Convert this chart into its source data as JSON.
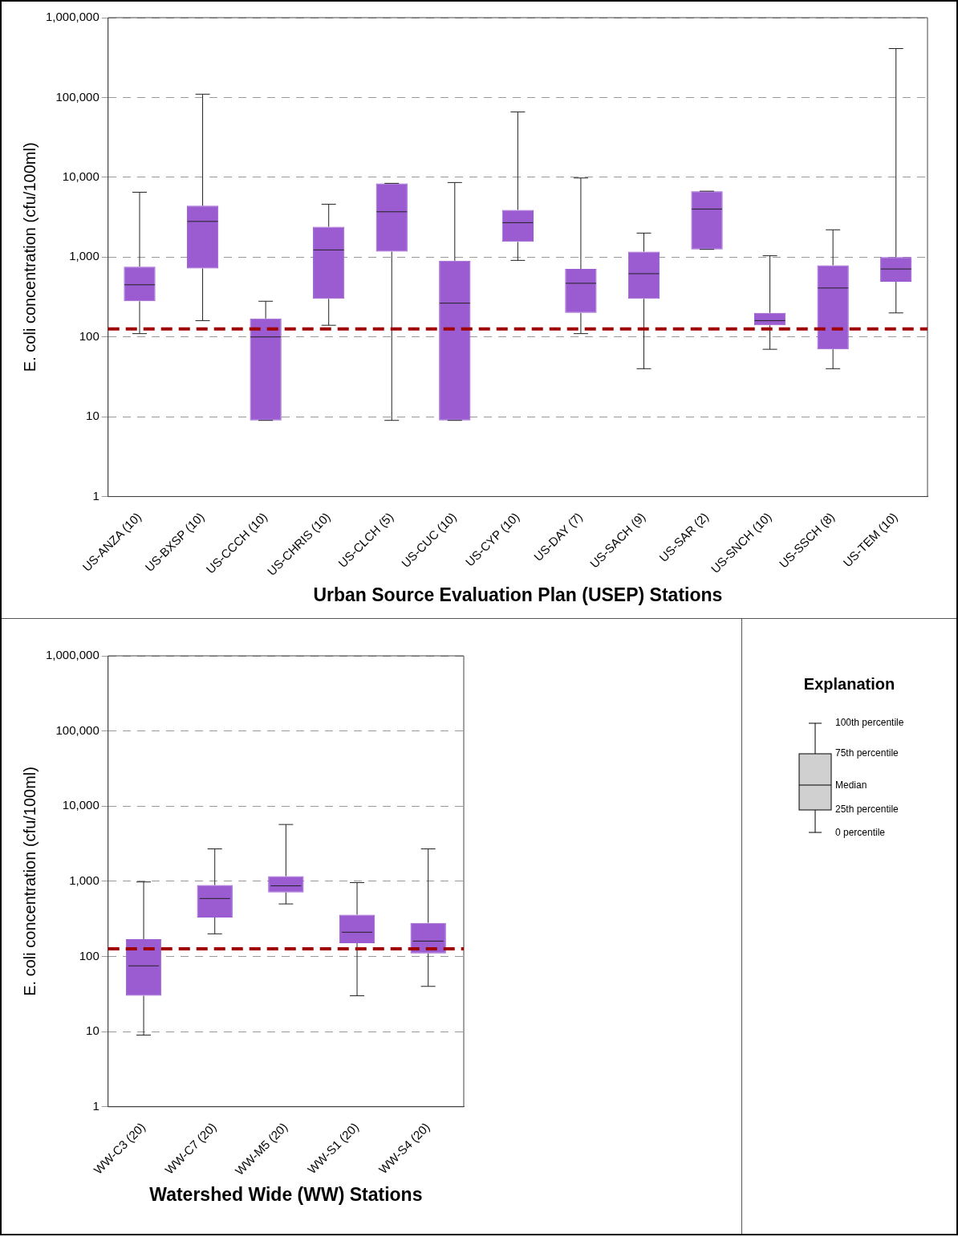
{
  "chart_data": [
    {
      "type": "box",
      "xlabel": "Urban Source Evaluation Plan (USEP) Stations",
      "ylabel": "E. coli concentration (cfu/100ml)",
      "categories": [
        "US-ANZA (10)",
        "US-BXSP (10)",
        "US-CCCH (10)",
        "US-CHRIS (10)",
        "US-CLCH (5)",
        "US-CUC (10)",
        "US-CYP (10)",
        "US-DAY (7)",
        "US-SACH (9)",
        "US-SAR (2)",
        "US-SNCH (10)",
        "US-SSCH (8)",
        "US-TEM (10)"
      ],
      "color": "#9a5cd0",
      "log": true,
      "grid": "y",
      "ylim": [
        1,
        1000000
      ],
      "yticks": [
        1,
        10,
        100,
        {
          "value": 1000,
          "label": "1,000"
        },
        {
          "value": 10000,
          "label": "10,000"
        },
        {
          "value": 100000,
          "label": "100,000"
        },
        {
          "value": 1000000,
          "label": "1,000,000"
        }
      ],
      "ref_lines": [
        {
          "axis": "y",
          "value": 126,
          "color": "#a00000",
          "line_style": "dashed"
        }
      ],
      "boxes": [
        {
          "low": 110,
          "q1": 280,
          "median": 450,
          "q3": 760,
          "high": 6500
        },
        {
          "low": 160,
          "q1": 720,
          "median": 2800,
          "q3": 4400,
          "high": 110000
        },
        {
          "low": 9,
          "q1": 9,
          "median": 100,
          "q3": 170,
          "high": 280
        },
        {
          "low": 140,
          "q1": 300,
          "median": 1230,
          "q3": 2400,
          "high": 4600
        },
        {
          "low": 9,
          "q1": 1170,
          "median": 3700,
          "q3": 8400,
          "high": 8400
        },
        {
          "low": 9,
          "q1": 9,
          "median": 265,
          "q3": 900,
          "high": 8600
        },
        {
          "low": 910,
          "q1": 1550,
          "median": 2700,
          "q3": 3900,
          "high": 66000
        },
        {
          "low": 110,
          "q1": 200,
          "median": 470,
          "q3": 710,
          "high": 9800
        },
        {
          "low": 40,
          "q1": 300,
          "median": 620,
          "q3": 1170,
          "high": 2000
        },
        {
          "low": 1250,
          "q1": 1250,
          "median": 4000,
          "q3": 6700,
          "high": 6700
        },
        {
          "low": 70,
          "q1": 140,
          "median": 160,
          "q3": 200,
          "high": 1040
        },
        {
          "low": 40,
          "q1": 70,
          "median": 410,
          "q3": 790,
          "high": 2200
        },
        {
          "low": 200,
          "q1": 490,
          "median": 710,
          "q3": 1000,
          "high": 410000
        }
      ]
    },
    {
      "type": "box",
      "xlabel": "Watershed Wide (WW) Stations",
      "ylabel": "E. coli concentration (cfu/100ml)",
      "categories": [
        "WW-C3 (20)",
        "WW-C7 (20)",
        "WW-M5 (20)",
        "WW-S1 (20)",
        "WW-S4 (20)"
      ],
      "color": "#9a5cd0",
      "log": true,
      "grid": "y",
      "ylim": [
        1,
        1000000
      ],
      "yticks": [
        1,
        10,
        100,
        {
          "value": 1000,
          "label": "1,000"
        },
        {
          "value": 10000,
          "label": "10,000"
        },
        {
          "value": 100000,
          "label": "100,000"
        },
        {
          "value": 1000000,
          "label": "1,000,000"
        }
      ],
      "ref_lines": [
        {
          "axis": "y",
          "value": 126,
          "color": "#a00000",
          "line_style": "dashed"
        }
      ],
      "boxes": [
        {
          "low": 9,
          "q1": 30,
          "median": 75,
          "q3": 170,
          "high": 980
        },
        {
          "low": 200,
          "q1": 330,
          "median": 590,
          "q3": 890,
          "high": 2700
        },
        {
          "low": 500,
          "q1": 710,
          "median": 870,
          "q3": 1170,
          "high": 5700
        },
        {
          "low": 30,
          "q1": 150,
          "median": 210,
          "q3": 360,
          "high": 960
        },
        {
          "low": 40,
          "q1": 110,
          "median": 160,
          "q3": 280,
          "high": 2700
        }
      ]
    },
    {
      "type": "other",
      "title": "Explanation",
      "annotations": [
        "100th percentile",
        "75th percentile",
        "Median",
        "25th percentile",
        "0 percentile"
      ]
    }
  ]
}
